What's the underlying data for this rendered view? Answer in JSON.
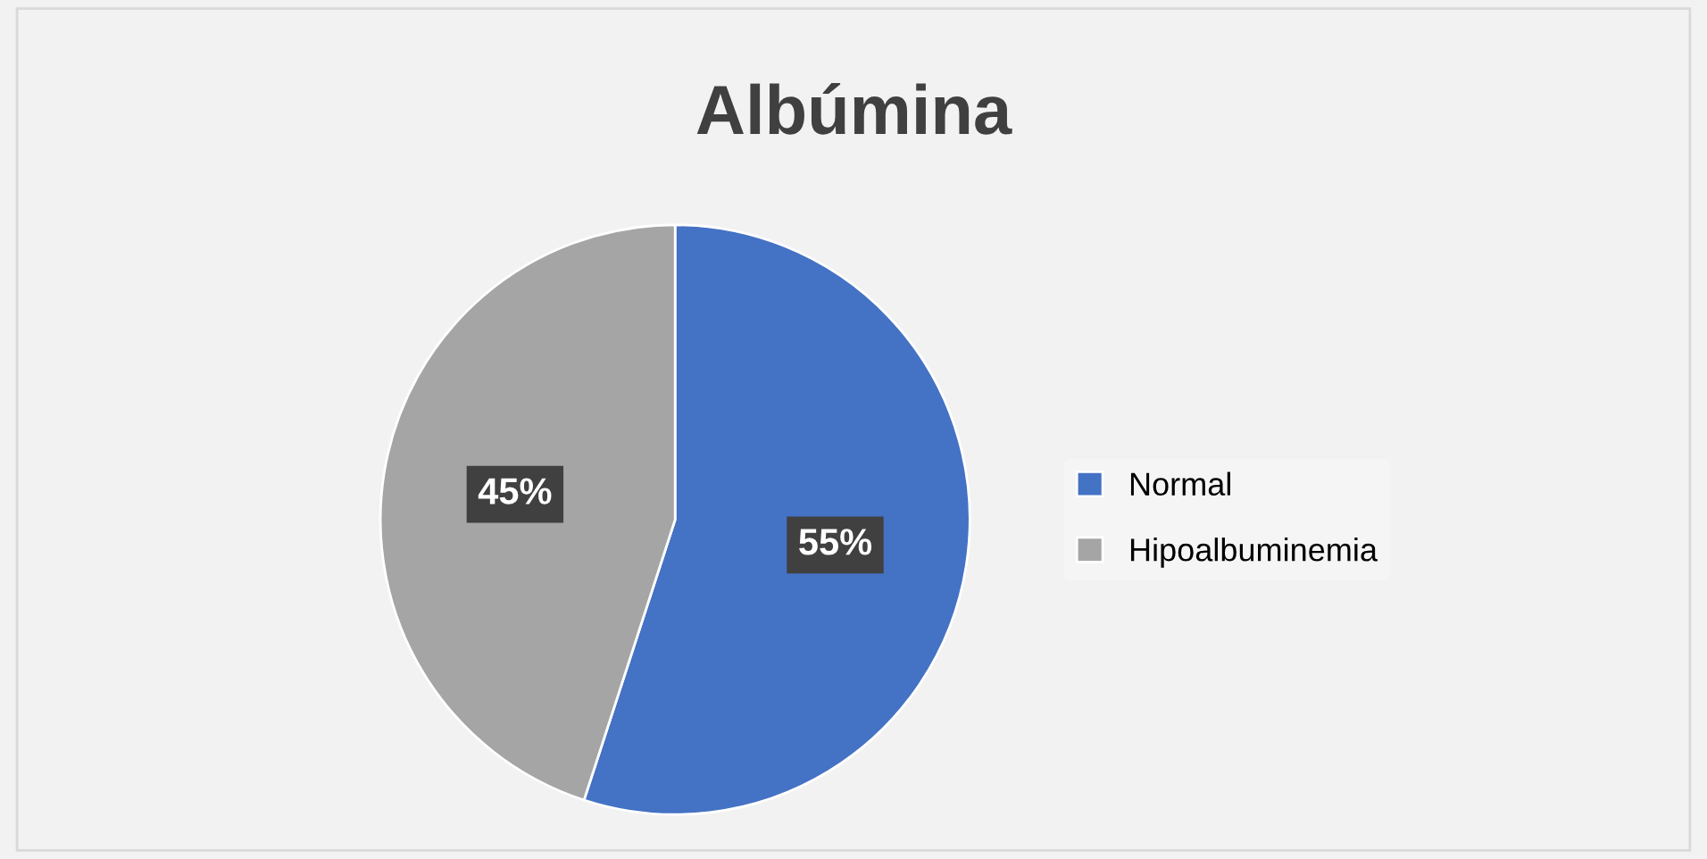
{
  "chart_data": {
    "type": "pie",
    "title": "Albúmina",
    "categories": [
      "Normal",
      "Hipoalbuminemia"
    ],
    "values": [
      55,
      45
    ],
    "colors": [
      "#4472c4",
      "#a5a5a5"
    ],
    "value_labels": [
      "55%",
      "45%"
    ],
    "legend": "right"
  }
}
